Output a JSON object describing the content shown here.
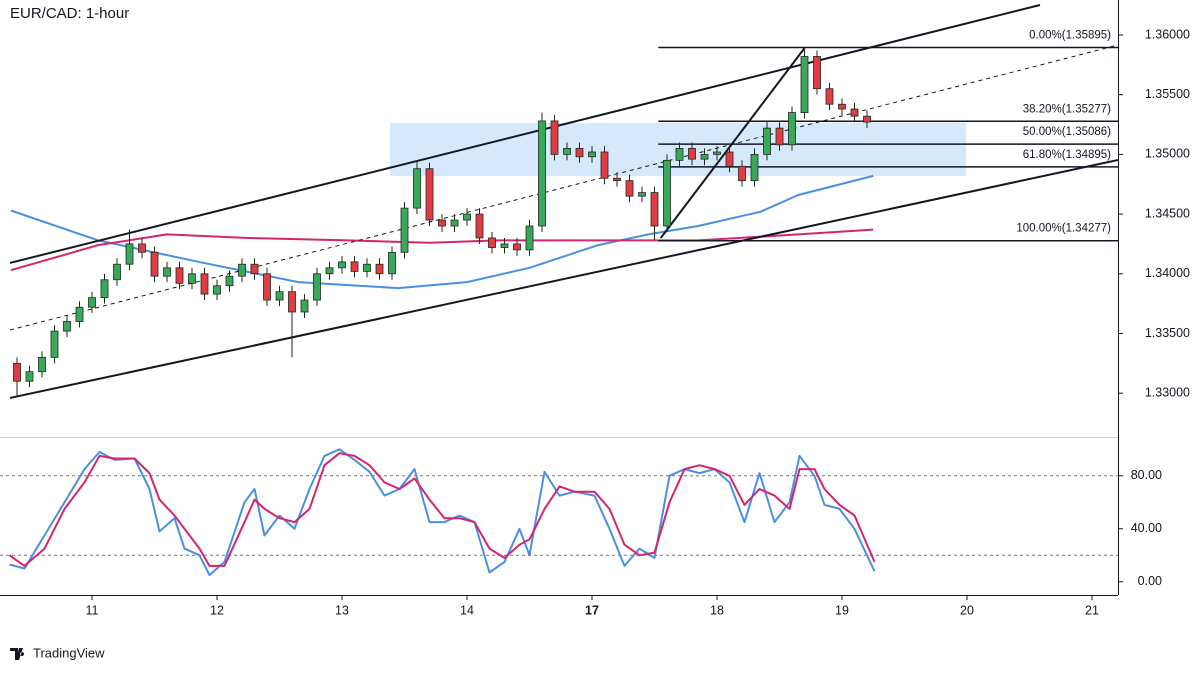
{
  "chart_data": {
    "type": "candlestick",
    "title": "EUR/CAD: 1-hour",
    "up_color": "#3aa85a",
    "down_color": "#e23b44",
    "outline_color": "#1f2a1f",
    "xlim": [
      0.344,
      9.208
    ],
    "xticks": [
      {
        "value": 1,
        "label": "11"
      },
      {
        "value": 2,
        "label": "12"
      },
      {
        "value": 3,
        "label": "13"
      },
      {
        "value": 4,
        "label": "14"
      },
      {
        "value": 5,
        "label": "17",
        "bold": true
      },
      {
        "value": 6,
        "label": "18"
      },
      {
        "value": 7,
        "label": "19"
      },
      {
        "value": 8,
        "label": "20"
      },
      {
        "value": 9,
        "label": "21"
      }
    ],
    "ylim": [
      1.32633,
      1.36293
    ],
    "yticks": [
      {
        "value": 1.33,
        "label": "1.33000"
      },
      {
        "value": 1.335,
        "label": "1.33500"
      },
      {
        "value": 1.34,
        "label": "1.34000"
      },
      {
        "value": 1.345,
        "label": "1.34500"
      },
      {
        "value": 1.35,
        "label": "1.35000"
      },
      {
        "value": 1.355,
        "label": "1.35500"
      },
      {
        "value": 1.36,
        "label": "1.36000"
      }
    ],
    "x": [
      0.4,
      0.5,
      0.6,
      0.7,
      0.8,
      0.9,
      1.0,
      1.1,
      1.2,
      1.3,
      1.4,
      1.5,
      1.6,
      1.7,
      1.8,
      1.9,
      2.0,
      2.1,
      2.2,
      2.3,
      2.4,
      2.5,
      2.6,
      2.7,
      2.8,
      2.9,
      3.0,
      3.1,
      3.2,
      3.3,
      3.4,
      3.5,
      3.6,
      3.7,
      3.8,
      3.9,
      4.0,
      4.1,
      4.2,
      4.3,
      4.4,
      4.5,
      4.6,
      4.7,
      4.8,
      4.9,
      5.0,
      5.1,
      5.2,
      5.3,
      5.4,
      5.5,
      5.6,
      5.7,
      5.8,
      5.9,
      6.0,
      6.1,
      6.2,
      6.3,
      6.4,
      6.5,
      6.6,
      6.7,
      6.8,
      6.9,
      7.0,
      7.1,
      7.2
    ],
    "open": [
      1.3325,
      1.331,
      1.3318,
      1.333,
      1.3352,
      1.336,
      1.3372,
      1.338,
      1.3395,
      1.3408,
      1.3425,
      1.3418,
      1.3398,
      1.3405,
      1.3392,
      1.34,
      1.3383,
      1.339,
      1.3398,
      1.3408,
      1.34,
      1.3378,
      1.3385,
      1.3368,
      1.3378,
      1.34,
      1.3405,
      1.341,
      1.3402,
      1.3408,
      1.34,
      1.3418,
      1.3455,
      1.3488,
      1.3445,
      1.344,
      1.3445,
      1.345,
      1.343,
      1.3422,
      1.3425,
      1.342,
      1.344,
      1.3528,
      1.35,
      1.3505,
      1.3498,
      1.3502,
      1.348,
      1.3478,
      1.3465,
      1.3468,
      1.344,
      1.3495,
      1.3505,
      1.3496,
      1.35,
      1.3502,
      1.349,
      1.3478,
      1.35,
      1.3522,
      1.3508,
      1.3535,
      1.3582,
      1.3555,
      1.3542,
      1.3538,
      1.3532
    ],
    "high": [
      1.333,
      1.3323,
      1.3335,
      1.3357,
      1.3365,
      1.3377,
      1.3385,
      1.34,
      1.3413,
      1.3437,
      1.343,
      1.3423,
      1.341,
      1.341,
      1.3405,
      1.3405,
      1.3395,
      1.3403,
      1.3413,
      1.3413,
      1.3405,
      1.339,
      1.339,
      1.3383,
      1.3405,
      1.341,
      1.3415,
      1.3415,
      1.3413,
      1.3413,
      1.3423,
      1.346,
      1.3495,
      1.3493,
      1.345,
      1.345,
      1.3455,
      1.3455,
      1.3435,
      1.343,
      1.343,
      1.3445,
      1.3535,
      1.3533,
      1.351,
      1.351,
      1.3507,
      1.3507,
      1.3485,
      1.3483,
      1.3473,
      1.3473,
      1.35,
      1.351,
      1.351,
      1.3505,
      1.3507,
      1.3507,
      1.3495,
      1.3505,
      1.3527,
      1.3527,
      1.354,
      1.3589,
      1.3587,
      1.356,
      1.3547,
      1.3543,
      1.3537
    ],
    "low": [
      1.3297,
      1.3305,
      1.3313,
      1.3325,
      1.3347,
      1.3355,
      1.3367,
      1.3375,
      1.339,
      1.3403,
      1.3413,
      1.3393,
      1.3393,
      1.3387,
      1.3387,
      1.3378,
      1.3378,
      1.3385,
      1.3393,
      1.3395,
      1.3373,
      1.3373,
      1.333,
      1.3363,
      1.3373,
      1.3395,
      1.34,
      1.3397,
      1.3397,
      1.3395,
      1.3395,
      1.3413,
      1.345,
      1.344,
      1.3435,
      1.3435,
      1.344,
      1.3425,
      1.3417,
      1.3417,
      1.3415,
      1.3415,
      1.3435,
      1.3495,
      1.3495,
      1.3493,
      1.3493,
      1.3475,
      1.3473,
      1.346,
      1.346,
      1.3428,
      1.3435,
      1.349,
      1.3491,
      1.3491,
      1.3495,
      1.3485,
      1.3473,
      1.3473,
      1.3495,
      1.3503,
      1.3503,
      1.353,
      1.355,
      1.3537,
      1.3533,
      1.3527,
      1.3522
    ],
    "close": [
      1.331,
      1.3318,
      1.333,
      1.3352,
      1.336,
      1.3372,
      1.338,
      1.3395,
      1.3408,
      1.3425,
      1.3418,
      1.3398,
      1.3405,
      1.3392,
      1.34,
      1.3383,
      1.339,
      1.3398,
      1.3408,
      1.34,
      1.3378,
      1.3385,
      1.3368,
      1.3378,
      1.34,
      1.3405,
      1.341,
      1.3402,
      1.3408,
      1.34,
      1.3418,
      1.3455,
      1.3488,
      1.3445,
      1.344,
      1.3445,
      1.345,
      1.343,
      1.3422,
      1.3425,
      1.342,
      1.344,
      1.3528,
      1.35,
      1.3505,
      1.3498,
      1.3502,
      1.348,
      1.3478,
      1.3465,
      1.3468,
      1.344,
      1.3495,
      1.3505,
      1.3496,
      1.35,
      1.3502,
      1.349,
      1.3478,
      1.35,
      1.3522,
      1.3508,
      1.3535,
      1.3582,
      1.3555,
      1.3542,
      1.3538,
      1.3532,
      1.3527
    ],
    "moving_averages": [
      {
        "color": "#4a90e2",
        "x": [
          0.35,
          1.05,
          1.85,
          2.65,
          3.45,
          4.0,
          4.5,
          5.05,
          5.45,
          5.85,
          6.35,
          6.65,
          7.25
        ],
        "values": [
          1.3453,
          1.3428,
          1.341,
          1.3393,
          1.3388,
          1.3393,
          1.3405,
          1.3424,
          1.3433,
          1.344,
          1.3452,
          1.3466,
          1.3482
        ]
      },
      {
        "color": "#d6246e",
        "x": [
          0.35,
          1.05,
          1.6,
          2.25,
          3.05,
          3.7,
          4.25,
          5.05,
          5.85,
          6.65,
          7.25
        ],
        "values": [
          1.3403,
          1.3424,
          1.3433,
          1.343,
          1.3428,
          1.3426,
          1.3428,
          1.3428,
          1.3428,
          1.3433,
          1.3437
        ]
      }
    ],
    "zone": {
      "x": [
        3.384,
        7.992
      ],
      "y": [
        1.34819,
        1.35263
      ],
      "color": "#d6e8fb"
    },
    "trendlines": [
      {
        "x": [
          0.344,
          8.584
        ],
        "y": [
          1.34091,
          1.36251
        ],
        "color": "#131722",
        "dashed": false
      },
      {
        "x": [
          0.344,
          9.208
        ],
        "y": [
          1.3296,
          1.34953
        ],
        "color": "#131722",
        "dashed": false
      },
      {
        "x": [
          0.344,
          9.208
        ],
        "y": [
          1.33529,
          1.35916
        ],
        "color": "#131722",
        "dashed": true
      },
      {
        "x": [
          5.55,
          6.7
        ],
        "y": [
          1.343,
          1.3589
        ],
        "color": "#131722",
        "dashed": false
      }
    ],
    "fib": {
      "x_start": 5.53,
      "color": "#131722",
      "levels": [
        {
          "label": "0.00%(1.35895)",
          "value": 1.35895
        },
        {
          "label": "38.20%(1.35277)",
          "value": 1.35277
        },
        {
          "label": "50.00%(1.35086)",
          "value": 1.35086
        },
        {
          "label": "61.80%(1.34895)",
          "value": 1.34895
        },
        {
          "label": "100.00%(1.34277)",
          "value": 1.34277
        }
      ]
    },
    "stochastic": {
      "ylim": [
        -10,
        107
      ],
      "yticks": [
        {
          "value": 0,
          "label": "0.00"
        },
        {
          "value": 40,
          "label": "40.00"
        },
        {
          "value": 80,
          "label": "80.00"
        }
      ],
      "bands": [
        20,
        80
      ],
      "x": [
        0.34,
        0.46,
        0.62,
        0.78,
        0.94,
        1.06,
        1.18,
        1.34,
        1.46,
        1.54,
        1.66,
        1.74,
        1.86,
        1.94,
        2.06,
        2.22,
        2.3,
        2.38,
        2.5,
        2.62,
        2.74,
        2.86,
        2.98,
        3.1,
        3.22,
        3.34,
        3.46,
        3.58,
        3.7,
        3.82,
        3.94,
        4.06,
        4.18,
        4.3,
        4.42,
        4.5,
        4.62,
        4.74,
        4.86,
        5.02,
        5.14,
        5.26,
        5.38,
        5.5,
        5.62,
        5.74,
        5.86,
        5.98,
        6.1,
        6.22,
        6.34,
        6.46,
        6.58,
        6.66,
        6.78,
        6.86,
        6.98,
        7.1,
        7.26
      ],
      "series": [
        {
          "color": "#4a90e2",
          "values": [
            13,
            10,
            35,
            60,
            85,
            98,
            92,
            93,
            70,
            38,
            48,
            25,
            20,
            5,
            15,
            60,
            70,
            35,
            50,
            40,
            70,
            95,
            100,
            92,
            83,
            65,
            70,
            85,
            45,
            45,
            50,
            45,
            7,
            15,
            40,
            20,
            83,
            65,
            68,
            65,
            40,
            12,
            25,
            18,
            80,
            85,
            82,
            85,
            75,
            45,
            82,
            45,
            60,
            95,
            80,
            58,
            55,
            40,
            8
          ]
        },
        {
          "color": "#d6246e",
          "values": [
            20,
            12,
            25,
            55,
            75,
            95,
            93,
            93,
            82,
            62,
            50,
            40,
            25,
            12,
            12,
            45,
            62,
            55,
            48,
            45,
            55,
            88,
            97,
            95,
            88,
            75,
            70,
            78,
            62,
            48,
            48,
            45,
            25,
            18,
            28,
            32,
            55,
            72,
            68,
            68,
            55,
            28,
            20,
            22,
            60,
            85,
            88,
            85,
            80,
            58,
            70,
            65,
            55,
            85,
            85,
            70,
            58,
            50,
            15
          ]
        }
      ]
    },
    "footer": {
      "brand": "TradingView"
    }
  }
}
